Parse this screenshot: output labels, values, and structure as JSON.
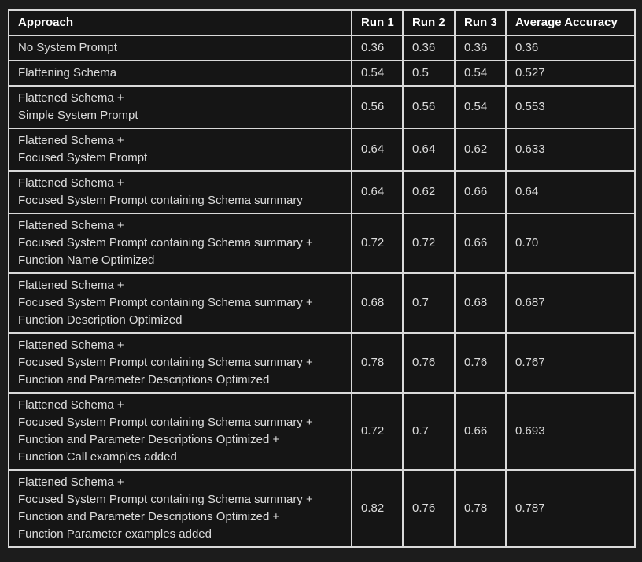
{
  "chart_data": {
    "type": "table",
    "columns": [
      "Approach",
      "Run 1",
      "Run 2",
      "Run 3",
      "Average Accuracy"
    ],
    "rows": [
      {
        "approach_lines": [
          "No System Prompt"
        ],
        "values": [
          "0.36",
          "0.36",
          "0.36",
          "0.36"
        ]
      },
      {
        "approach_lines": [
          "Flattening Schema"
        ],
        "values": [
          "0.54",
          "0.5",
          "0.54",
          "0.527"
        ]
      },
      {
        "approach_lines": [
          "Flattened Schema +",
          "Simple System Prompt"
        ],
        "values": [
          "0.56",
          "0.56",
          "0.54",
          "0.553"
        ]
      },
      {
        "approach_lines": [
          "Flattened Schema +",
          "Focused System Prompt"
        ],
        "values": [
          "0.64",
          "0.64",
          "0.62",
          "0.633"
        ]
      },
      {
        "approach_lines": [
          "Flattened Schema +",
          "Focused System Prompt containing Schema summary"
        ],
        "values": [
          "0.64",
          "0.62",
          "0.66",
          "0.64"
        ]
      },
      {
        "approach_lines": [
          "Flattened Schema +",
          "Focused System Prompt containing Schema summary +",
          "Function Name Optimized"
        ],
        "values": [
          "0.72",
          "0.72",
          "0.66",
          "0.70"
        ]
      },
      {
        "approach_lines": [
          "Flattened Schema +",
          "Focused System Prompt containing Schema summary +",
          "Function Description Optimized"
        ],
        "values": [
          "0.68",
          "0.7",
          "0.68",
          "0.687"
        ]
      },
      {
        "approach_lines": [
          "Flattened Schema +",
          "Focused System Prompt containing Schema summary +",
          "Function and Parameter Descriptions Optimized"
        ],
        "values": [
          "0.78",
          "0.76",
          "0.76",
          "0.767"
        ]
      },
      {
        "approach_lines": [
          "Flattened Schema +",
          "Focused System Prompt containing Schema summary +",
          "Function and Parameter Descriptions Optimized +",
          "Function Call examples added"
        ],
        "values": [
          "0.72",
          "0.7",
          "0.66",
          "0.693"
        ]
      },
      {
        "approach_lines": [
          "Flattened Schema +",
          "Focused System Prompt containing Schema summary +",
          "Function and Parameter Descriptions Optimized +",
          "Function Parameter examples added"
        ],
        "values": [
          "0.82",
          "0.76",
          "0.78",
          "0.787"
        ]
      }
    ],
    "colors": {
      "page_background": "#1c1c1c",
      "cell_background": "#151515",
      "border": "#d9d9d9",
      "header_text": "#ffffff",
      "body_text": "#dcdcdc"
    },
    "layout": {
      "grid": "full-borders",
      "header_row": true
    }
  }
}
